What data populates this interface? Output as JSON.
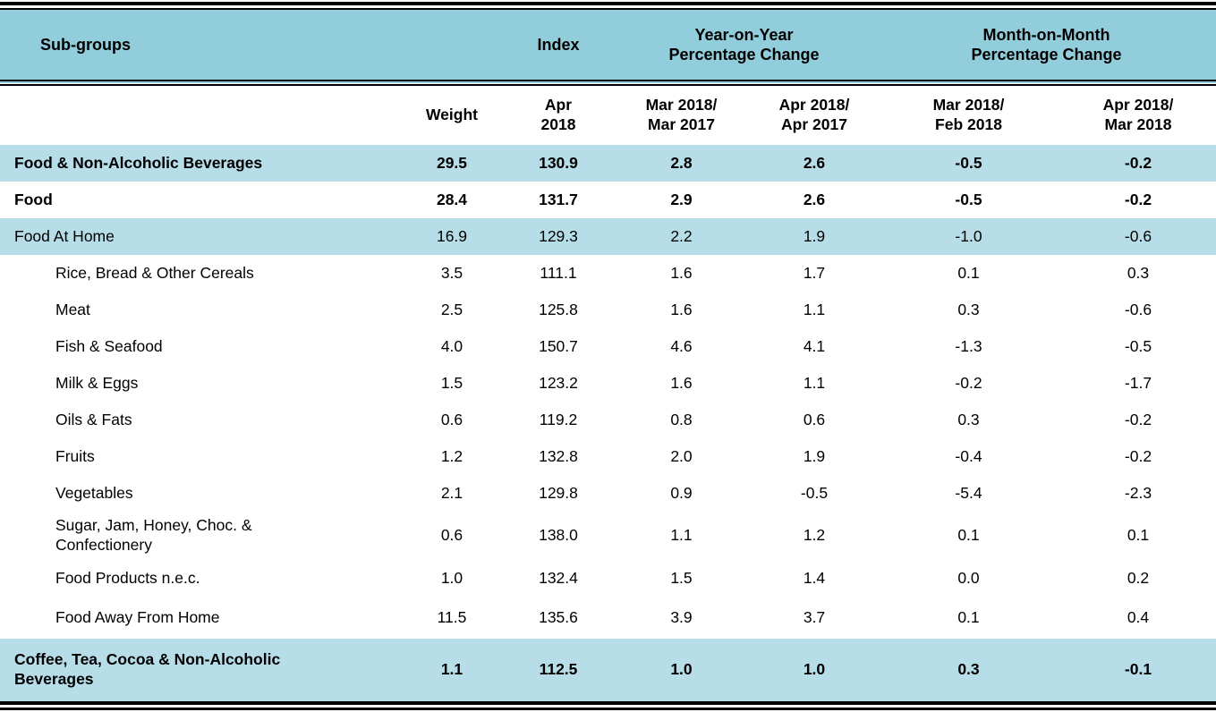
{
  "colors": {
    "group_header_bg": "#92CDDC",
    "highlight_row_bg": "#B7DEE8",
    "text": "#000000",
    "rule": "#000000"
  },
  "table": {
    "column_headers": {
      "subgroups": "Sub-groups",
      "index_group": "Index",
      "yoy_group": "Year-on-Year\nPercentage Change",
      "mom_group": "Month-on-Month\nPercentage Change",
      "weight": "Weight",
      "index_period": "Apr\n2018",
      "yoy_1": "Mar 2018/\nMar 2017",
      "yoy_2": "Apr 2018/\nApr 2017",
      "mom_1": "Mar 2018/\nFeb 2018",
      "mom_2": "Apr 2018/\nMar 2018"
    },
    "rows": [
      {
        "name": "Food & Non-Alcoholic Beverages",
        "weight": "29.5",
        "index": "130.9",
        "yoy_1": "2.8",
        "yoy_2": "2.6",
        "mom_1": "-0.5",
        "mom_2": "-0.2"
      },
      {
        "name": "Food",
        "weight": "28.4",
        "index": "131.7",
        "yoy_1": "2.9",
        "yoy_2": "2.6",
        "mom_1": "-0.5",
        "mom_2": "-0.2"
      },
      {
        "name": "Food At Home",
        "weight": "16.9",
        "index": "129.3",
        "yoy_1": "2.2",
        "yoy_2": "1.9",
        "mom_1": "-1.0",
        "mom_2": "-0.6"
      },
      {
        "name": "Rice, Bread & Other Cereals",
        "weight": "3.5",
        "index": "111.1",
        "yoy_1": "1.6",
        "yoy_2": "1.7",
        "mom_1": "0.1",
        "mom_2": "0.3"
      },
      {
        "name": "Meat",
        "weight": "2.5",
        "index": "125.8",
        "yoy_1": "1.6",
        "yoy_2": "1.1",
        "mom_1": "0.3",
        "mom_2": "-0.6"
      },
      {
        "name": "Fish & Seafood",
        "weight": "4.0",
        "index": "150.7",
        "yoy_1": "4.6",
        "yoy_2": "4.1",
        "mom_1": "-1.3",
        "mom_2": "-0.5"
      },
      {
        "name": "Milk & Eggs",
        "weight": "1.5",
        "index": "123.2",
        "yoy_1": "1.6",
        "yoy_2": "1.1",
        "mom_1": "-0.2",
        "mom_2": "-1.7"
      },
      {
        "name": "Oils & Fats",
        "weight": "0.6",
        "index": "119.2",
        "yoy_1": "0.8",
        "yoy_2": "0.6",
        "mom_1": "0.3",
        "mom_2": "-0.2"
      },
      {
        "name": "Fruits",
        "weight": "1.2",
        "index": "132.8",
        "yoy_1": "2.0",
        "yoy_2": "1.9",
        "mom_1": "-0.4",
        "mom_2": "-0.2"
      },
      {
        "name": "Vegetables",
        "weight": "2.1",
        "index": "129.8",
        "yoy_1": "0.9",
        "yoy_2": "-0.5",
        "mom_1": "-5.4",
        "mom_2": "-2.3"
      },
      {
        "name": "Sugar, Jam, Honey, Choc. &\nConfectionery",
        "weight": "0.6",
        "index": "138.0",
        "yoy_1": "1.1",
        "yoy_2": "1.2",
        "mom_1": "0.1",
        "mom_2": "0.1"
      },
      {
        "name": "Food Products n.e.c.",
        "weight": "1.0",
        "index": "132.4",
        "yoy_1": "1.5",
        "yoy_2": "1.4",
        "mom_1": "0.0",
        "mom_2": "0.2"
      },
      {
        "name": "Food Away From Home",
        "weight": "11.5",
        "index": "135.6",
        "yoy_1": "3.9",
        "yoy_2": "3.7",
        "mom_1": "0.1",
        "mom_2": "0.4"
      },
      {
        "name": "Coffee, Tea, Cocoa & Non-Alcoholic\nBeverages",
        "weight": "1.1",
        "index": "112.5",
        "yoy_1": "1.0",
        "yoy_2": "1.0",
        "mom_1": "0.3",
        "mom_2": "-0.1"
      }
    ]
  }
}
